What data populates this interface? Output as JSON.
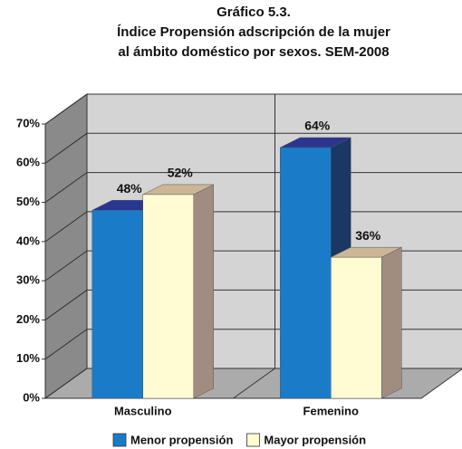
{
  "chart_data": {
    "type": "bar3d",
    "title": "Gráfico 5.3.",
    "subtitle": [
      "Índice Propensión adscripción de la mujer",
      "al ámbito doméstico por sexos. SEM-2008"
    ],
    "categories": [
      "Masculino",
      "Femenino"
    ],
    "series": [
      {
        "name": "Menor propensión",
        "color": "#1a7cc9",
        "top_color": "#2b3592",
        "side_color": "#1b3764",
        "values": [
          48,
          64
        ],
        "value_labels": [
          "48%",
          "64%"
        ]
      },
      {
        "name": "Mayor propensión",
        "color": "#fffbd2",
        "top_color": "#cbb796",
        "side_color": "#a18d80",
        "values": [
          52,
          36
        ],
        "value_labels": [
          "52%",
          "36%"
        ]
      }
    ],
    "ylim": [
      0,
      70
    ],
    "yticks": [
      {
        "value": 0,
        "label": "0%"
      },
      {
        "value": 10,
        "label": "10%"
      },
      {
        "value": 20,
        "label": "20%"
      },
      {
        "value": 30,
        "label": "30%"
      },
      {
        "value": 40,
        "label": "40%"
      },
      {
        "value": 50,
        "label": "50%"
      },
      {
        "value": 60,
        "label": "60%"
      },
      {
        "value": 70,
        "label": "70%"
      }
    ],
    "grid": true,
    "legend": "bottom"
  }
}
